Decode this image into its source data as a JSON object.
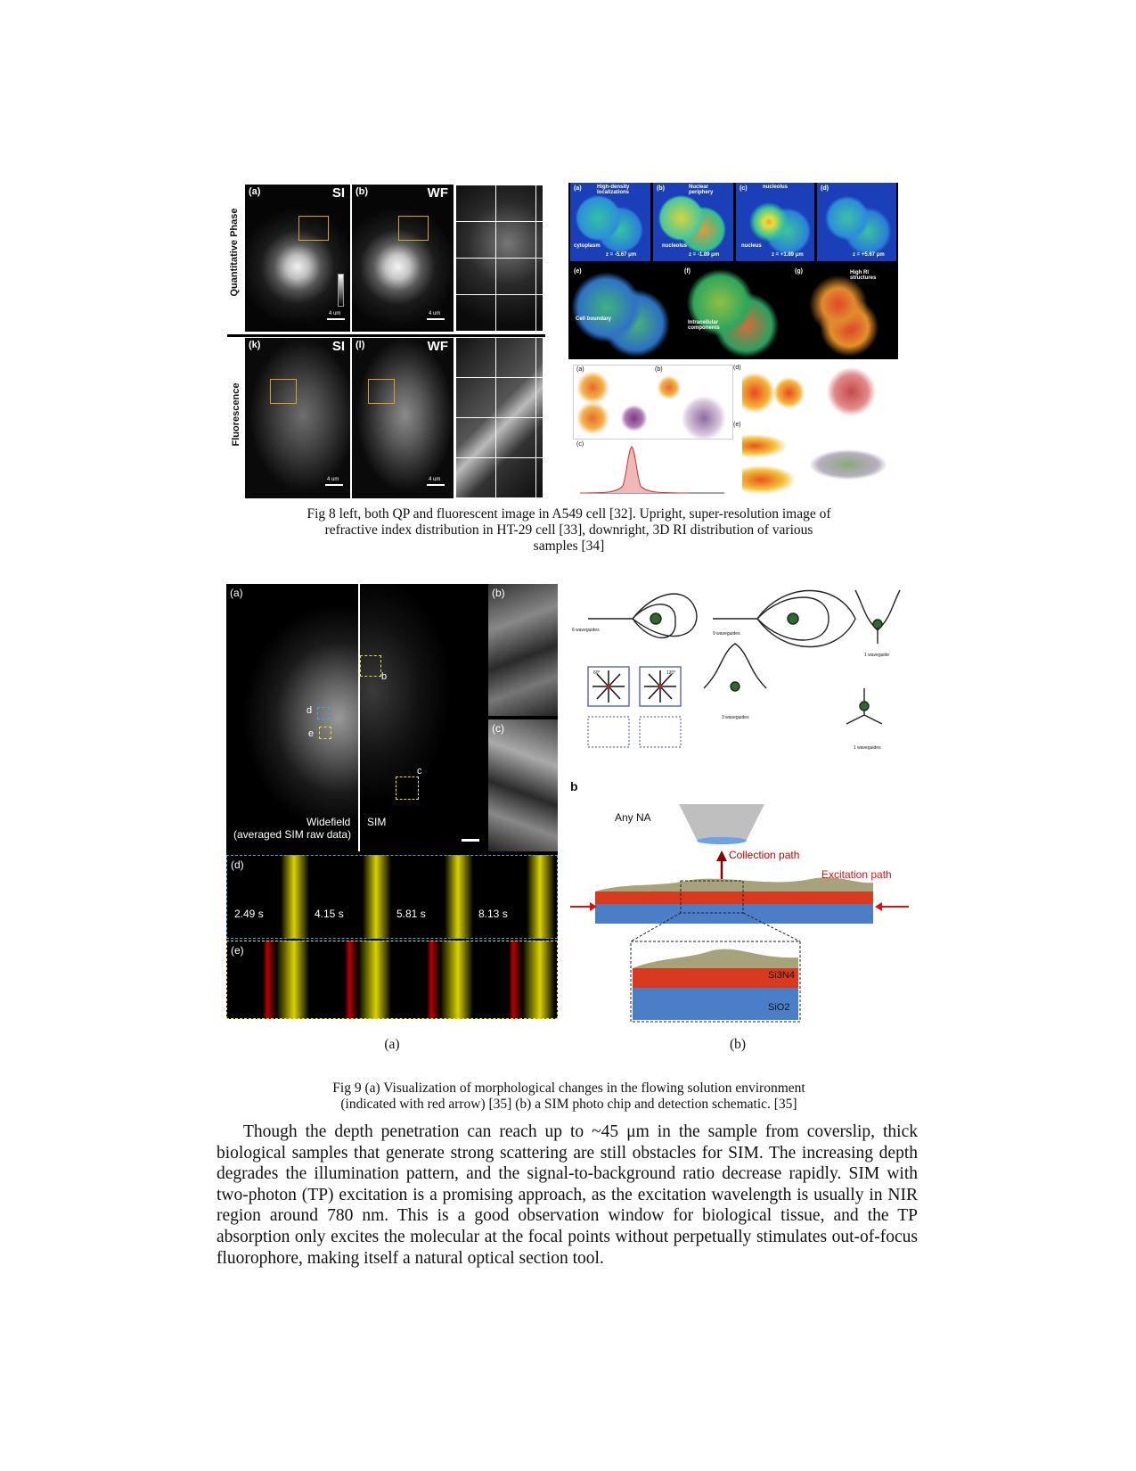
{
  "fig8": {
    "left": {
      "row_labels": [
        "Quantitative Phase",
        "Fluorescence"
      ],
      "panel_labels": [
        "(a)",
        "(b)",
        "(k)",
        "(l)"
      ],
      "mode_labels": [
        "SI",
        "WF",
        "SI",
        "WF"
      ],
      "scale_labels": [
        "4 um",
        "4 um",
        "4 um",
        "4 um"
      ]
    },
    "upright": {
      "panel_labels": [
        "(a)",
        "(b)",
        "(c)",
        "(d)",
        "(e)",
        "(f)",
        "(g)"
      ],
      "annotations": [
        "High-density localizations",
        "Nuclear periphery",
        "nucleolus",
        "cytoplasm",
        "nucleolus",
        "nucleus",
        "Cell boundary",
        "Intracellular components",
        "High RI structures"
      ],
      "depth_labels": [
        "z = -5.67 μm",
        "z = -1.89 μm",
        "z = +1.89 μm",
        "z = +5.67 μm"
      ]
    },
    "downright": {
      "panel_labels": [
        "(a)",
        "(b)",
        "(c)",
        "(d)",
        "(e)"
      ]
    },
    "caption_lines": [
      "Fig 8 left, both QP and fluorescent image in A549 cell [32]. Upright, super-resolution image of",
      "refractive index distribution in HT-29 cell [33], downright, 3D RI distribution of various",
      "samples [34]"
    ]
  },
  "fig9": {
    "a": {
      "panel_labels": [
        "(a)",
        "(b)",
        "(c)",
        "(d)",
        "(e)"
      ],
      "roi_labels": [
        "b",
        "c",
        "d",
        "e"
      ],
      "widefield_label_1": "Widefield",
      "widefield_label_2": "(averaged SIM raw data)",
      "sim_label": "SIM",
      "timestamps": [
        "2.49 s",
        "4.15 s",
        "5.81 s",
        "8.13 s"
      ]
    },
    "b": {
      "waveguide_labels": [
        "6 waveguides",
        "9 waveguides",
        "1 waveguide",
        "3 waveguides",
        "1 waveguides"
      ],
      "angle_labels": [
        "60°",
        "120°"
      ],
      "schematic_label": "b",
      "any_na": "Any NA",
      "collection_path": "Collection path",
      "excitation_path": "Excitation path",
      "si3n4": "Si3N4",
      "sio2": "SiO2"
    },
    "sub_a": "(a)",
    "sub_b": "(b)",
    "caption_lines": [
      "Fig 9 (a) Visualization of morphological changes in the flowing solution environment",
      "(indicated with red arrow) [35] (b) a SIM photo chip and detection schematic. [35]"
    ]
  },
  "body_paragraph": "Though the depth penetration can reach up to ~45 μm in the sample from coverslip, thick biological samples that generate strong scattering are still obstacles for SIM. The increasing depth degrades the illumination pattern, and the signal-to-background ratio decrease rapidly. SIM with two-photon (TP) excitation is a promising approach, as the excitation wavelength is usually in NIR region around 780 nm. This is a good observation window for biological tissue, and the TP absorption only excites the molecular at the focal points without perpetually stimulates out-of-focus fluorophore, making itself a natural optical section tool."
}
